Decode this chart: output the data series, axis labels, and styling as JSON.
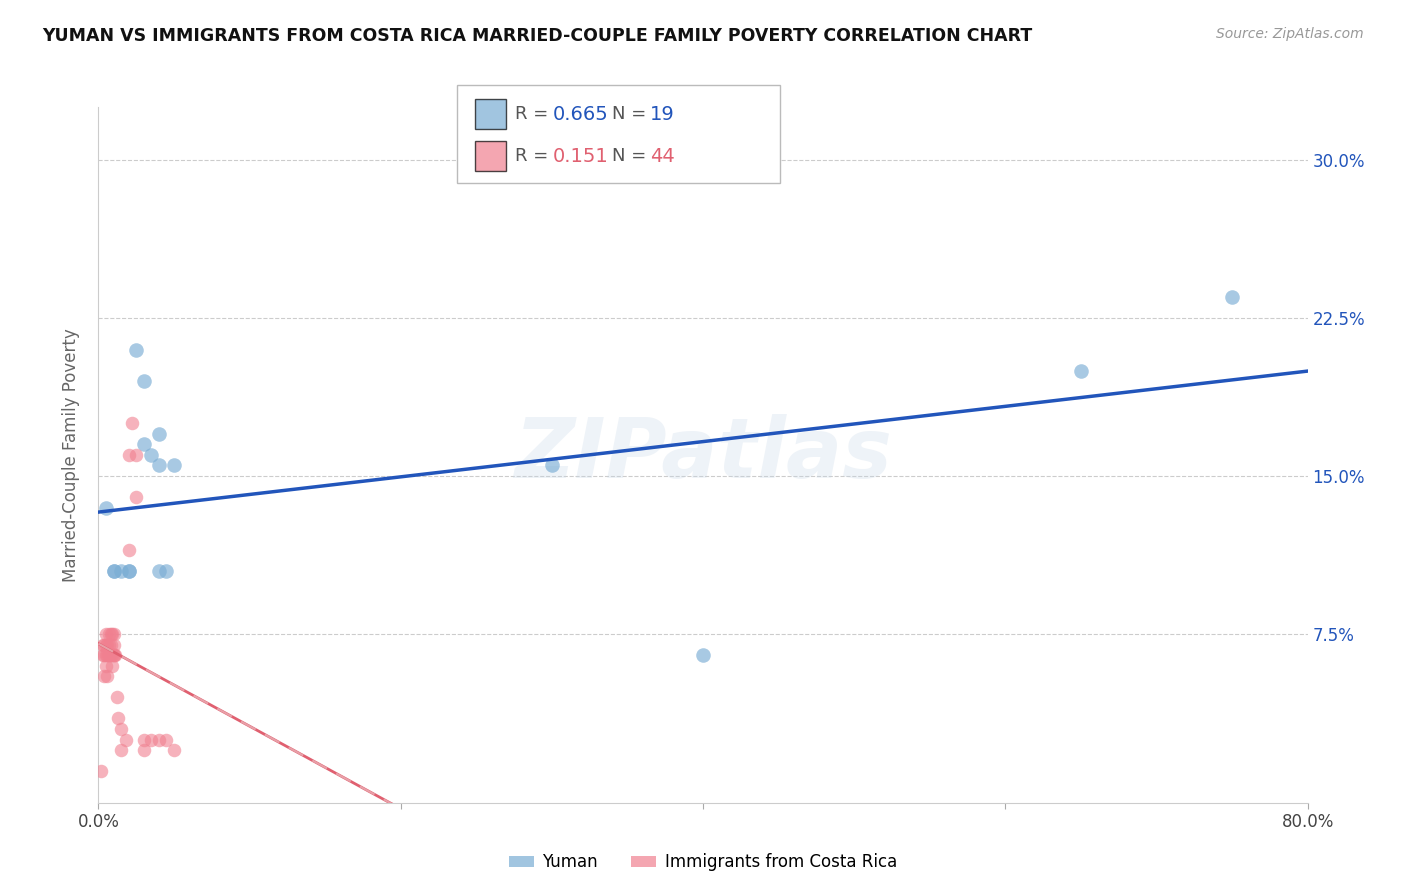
{
  "title": "YUMAN VS IMMIGRANTS FROM COSTA RICA MARRIED-COUPLE FAMILY POVERTY CORRELATION CHART",
  "source": "Source: ZipAtlas.com",
  "ylabel": "Married-Couple Family Poverty",
  "xlim": [
    0,
    0.8
  ],
  "ylim": [
    -0.005,
    0.325
  ],
  "xtick_pos": [
    0.0,
    0.2,
    0.4,
    0.6,
    0.8
  ],
  "xtick_labels": [
    "0.0%",
    "",
    "",
    "",
    "80.0%"
  ],
  "ytick_labels_right": [
    "7.5%",
    "15.0%",
    "22.5%",
    "30.0%"
  ],
  "yticks_right": [
    0.075,
    0.15,
    0.225,
    0.3
  ],
  "yuman_color": "#7aadd4",
  "costa_rica_color": "#f08090",
  "yuman_line_color": "#2255bb",
  "costa_rica_line_color": "#e06070",
  "costa_rica_dash_color": "#e8a0a8",
  "yuman_R": 0.665,
  "yuman_N": 19,
  "costa_rica_R": 0.151,
  "costa_rica_N": 44,
  "yuman_x": [
    0.005,
    0.01,
    0.01,
    0.015,
    0.02,
    0.02,
    0.025,
    0.03,
    0.03,
    0.035,
    0.04,
    0.04,
    0.04,
    0.045,
    0.05,
    0.3,
    0.4,
    0.65,
    0.75
  ],
  "yuman_y": [
    0.135,
    0.105,
    0.105,
    0.105,
    0.105,
    0.105,
    0.21,
    0.195,
    0.165,
    0.16,
    0.17,
    0.155,
    0.105,
    0.105,
    0.155,
    0.155,
    0.065,
    0.2,
    0.235
  ],
  "costa_rica_x": [
    0.002,
    0.003,
    0.003,
    0.004,
    0.004,
    0.004,
    0.005,
    0.005,
    0.005,
    0.005,
    0.006,
    0.006,
    0.006,
    0.007,
    0.007,
    0.007,
    0.007,
    0.008,
    0.008,
    0.008,
    0.009,
    0.009,
    0.009,
    0.01,
    0.01,
    0.01,
    0.01,
    0.011,
    0.012,
    0.013,
    0.015,
    0.015,
    0.018,
    0.02,
    0.02,
    0.022,
    0.025,
    0.025,
    0.03,
    0.03,
    0.035,
    0.04,
    0.045,
    0.05
  ],
  "costa_rica_y": [
    0.01,
    0.065,
    0.07,
    0.055,
    0.065,
    0.07,
    0.06,
    0.065,
    0.07,
    0.075,
    0.055,
    0.065,
    0.07,
    0.065,
    0.065,
    0.07,
    0.075,
    0.065,
    0.07,
    0.075,
    0.06,
    0.065,
    0.075,
    0.065,
    0.065,
    0.07,
    0.075,
    0.065,
    0.045,
    0.035,
    0.02,
    0.03,
    0.025,
    0.115,
    0.16,
    0.175,
    0.16,
    0.14,
    0.02,
    0.025,
    0.025,
    0.025,
    0.025,
    0.02
  ],
  "watermark": "ZIPatlas",
  "background_color": "#ffffff",
  "grid_color": "#cccccc"
}
